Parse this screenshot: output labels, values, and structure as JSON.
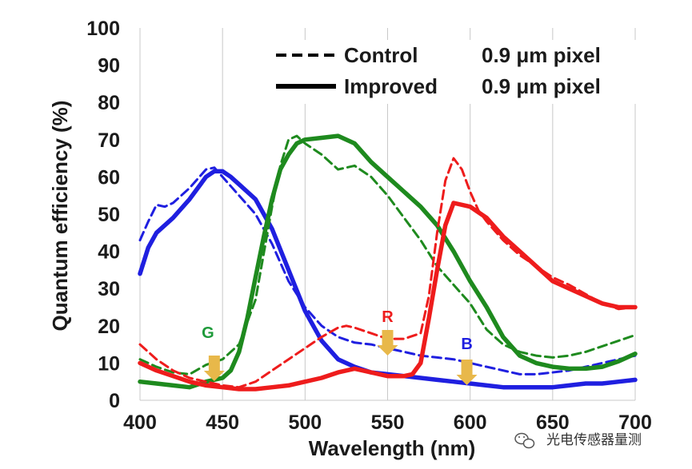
{
  "chart_data": {
    "type": "line",
    "xlabel": "Wavelength (nm)",
    "ylabel": "Quantum efficiency (%)",
    "xlim": [
      400,
      700
    ],
    "ylim": [
      0,
      100
    ],
    "x_ticks": [
      400,
      450,
      500,
      550,
      600,
      650,
      700
    ],
    "y_ticks": [
      0,
      10,
      20,
      30,
      40,
      50,
      60,
      70,
      80,
      90,
      100
    ],
    "grid": "vertical",
    "legend": {
      "position": "top-right",
      "entries": [
        {
          "style": "dashed",
          "text": "Control",
          "text2": "0.9 μm pixel"
        },
        {
          "style": "solid",
          "text": "Improved",
          "text2": "0.9 μm pixel"
        }
      ]
    },
    "series": [
      {
        "channel": "blue",
        "style": "dashed",
        "color": "#1f1fe0",
        "x": [
          400,
          405,
          410,
          415,
          420,
          430,
          440,
          445,
          450,
          460,
          470,
          480,
          490,
          500,
          510,
          520,
          530,
          540,
          550,
          560,
          570,
          580,
          590,
          600,
          610,
          620,
          630,
          640,
          650,
          660,
          670,
          680,
          690,
          700
        ],
        "y": [
          43,
          48,
          52.5,
          52,
          53,
          57,
          62,
          62.5,
          60,
          55,
          50,
          42,
          32,
          25,
          20,
          17,
          15.5,
          15,
          14,
          13,
          12,
          11.5,
          11,
          10,
          9,
          8,
          7,
          7,
          7.5,
          8,
          9,
          10,
          11,
          12
        ]
      },
      {
        "channel": "blue",
        "style": "solid",
        "color": "#1f1fe0",
        "x": [
          400,
          405,
          410,
          420,
          430,
          440,
          445,
          450,
          455,
          460,
          470,
          480,
          490,
          500,
          510,
          520,
          530,
          540,
          550,
          560,
          570,
          580,
          590,
          600,
          610,
          620,
          630,
          640,
          650,
          660,
          670,
          680,
          690,
          700
        ],
        "y": [
          34,
          41,
          45,
          49,
          54,
          60,
          61.5,
          61.5,
          60,
          58,
          54,
          46,
          35,
          24,
          16,
          11,
          9,
          7.5,
          7,
          6.5,
          6,
          5.5,
          5,
          4.5,
          4,
          3.5,
          3.5,
          3.5,
          3.5,
          4,
          4.5,
          4.5,
          5,
          5.5
        ]
      },
      {
        "channel": "green",
        "style": "dashed",
        "color": "#1e8a1e",
        "x": [
          400,
          410,
          420,
          430,
          440,
          450,
          460,
          470,
          480,
          485,
          490,
          495,
          500,
          510,
          520,
          530,
          540,
          550,
          560,
          570,
          580,
          590,
          600,
          610,
          620,
          630,
          640,
          650,
          660,
          670,
          680,
          690,
          700
        ],
        "y": [
          11,
          9,
          7.5,
          7,
          9.5,
          11,
          15,
          27,
          52,
          63,
          70,
          71,
          69,
          66,
          62,
          63,
          60,
          55,
          49,
          43,
          36,
          31,
          26,
          19,
          15,
          13,
          12,
          11.5,
          12,
          13,
          14.5,
          16,
          17.5
        ]
      },
      {
        "channel": "green",
        "style": "solid",
        "color": "#1e8a1e",
        "x": [
          400,
          410,
          420,
          430,
          440,
          450,
          455,
          460,
          465,
          470,
          475,
          480,
          485,
          490,
          495,
          500,
          510,
          520,
          530,
          540,
          550,
          560,
          570,
          580,
          590,
          600,
          610,
          620,
          630,
          640,
          650,
          660,
          670,
          680,
          690,
          700
        ],
        "y": [
          5,
          4.5,
          4,
          3.5,
          5,
          6,
          8,
          13,
          22,
          33,
          44,
          54,
          62,
          66,
          69,
          70,
          70.5,
          71,
          69,
          64,
          60,
          56,
          52,
          47,
          40,
          32,
          25,
          17,
          12,
          10,
          9,
          8.5,
          8.5,
          9,
          10.5,
          12.5
        ]
      },
      {
        "channel": "red",
        "style": "dashed",
        "color": "#ee1c1c",
        "x": [
          400,
          410,
          420,
          430,
          440,
          450,
          460,
          470,
          480,
          490,
          500,
          510,
          520,
          525,
          530,
          540,
          550,
          560,
          570,
          575,
          580,
          585,
          590,
          595,
          600,
          605,
          610,
          620,
          630,
          640,
          650,
          660,
          670,
          680,
          690,
          700
        ],
        "y": [
          15,
          11,
          8,
          6,
          5,
          4,
          3.5,
          5,
          8,
          11,
          14,
          17,
          19.5,
          20,
          19.5,
          18,
          16.5,
          16.5,
          18,
          28,
          45,
          59,
          65,
          62,
          56,
          51,
          48,
          43,
          39,
          36,
          33,
          31,
          28.5,
          26,
          24.5,
          25
        ]
      },
      {
        "channel": "red",
        "style": "solid",
        "color": "#ee1c1c",
        "x": [
          400,
          410,
          420,
          430,
          440,
          450,
          460,
          470,
          480,
          490,
          500,
          510,
          520,
          530,
          540,
          550,
          560,
          565,
          570,
          575,
          580,
          585,
          590,
          600,
          610,
          620,
          630,
          640,
          650,
          660,
          670,
          680,
          690,
          700
        ],
        "y": [
          10,
          8,
          6.5,
          5,
          4,
          3.5,
          3,
          3,
          3.5,
          4,
          5,
          6,
          7.5,
          8.5,
          7.5,
          6.5,
          6.5,
          7,
          10,
          22,
          35,
          47,
          53,
          52,
          49,
          44,
          40,
          36,
          32,
          30,
          28,
          26,
          25,
          25
        ]
      }
    ],
    "annotations": [
      {
        "label": "G",
        "color": "#1e9a3a",
        "x": 445
      },
      {
        "label": "R",
        "color": "#ee1c1c",
        "x": 550
      },
      {
        "label": "B",
        "color": "#1f1fe0",
        "x": 598
      }
    ],
    "arrow_color": "#e8b84a"
  },
  "watermark": {
    "icon": "wechat-icon",
    "text": "光电传感器量测"
  }
}
